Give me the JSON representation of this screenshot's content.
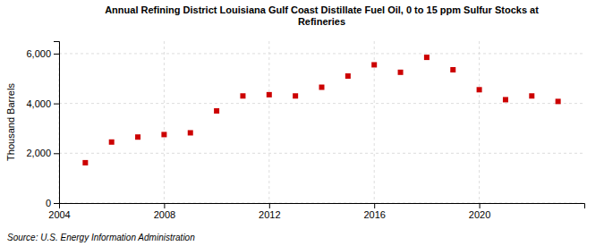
{
  "chart_data": {
    "type": "scatter",
    "title": "Annual Refining District Louisiana Gulf Coast Distillate Fuel Oil, 0 to 15 ppm Sulfur Stocks at\nRefineries",
    "ylabel": "Thousand Barrels",
    "source": "Source: U.S. Energy Information Administration",
    "x": [
      2005,
      2006,
      2007,
      2008,
      2009,
      2010,
      2011,
      2012,
      2013,
      2014,
      2015,
      2016,
      2017,
      2018,
      2019,
      2020,
      2021,
      2022,
      2023
    ],
    "values": [
      1620,
      2450,
      2650,
      2750,
      2820,
      3700,
      4300,
      4350,
      4300,
      4650,
      5100,
      5550,
      5250,
      5850,
      5350,
      4550,
      4150,
      4300,
      4080
    ],
    "color": "#CC0000",
    "marker": "square",
    "xlim": [
      2004,
      2024
    ],
    "ylim": [
      0,
      6500
    ],
    "xticks": [
      2004,
      2008,
      2012,
      2016,
      2020
    ],
    "yticks": [
      0,
      {
        "value": 2000,
        "label": "2,000"
      },
      {
        "value": 4000,
        "label": "4,000"
      },
      {
        "value": 6000,
        "label": "6,000"
      }
    ],
    "grid": true
  }
}
